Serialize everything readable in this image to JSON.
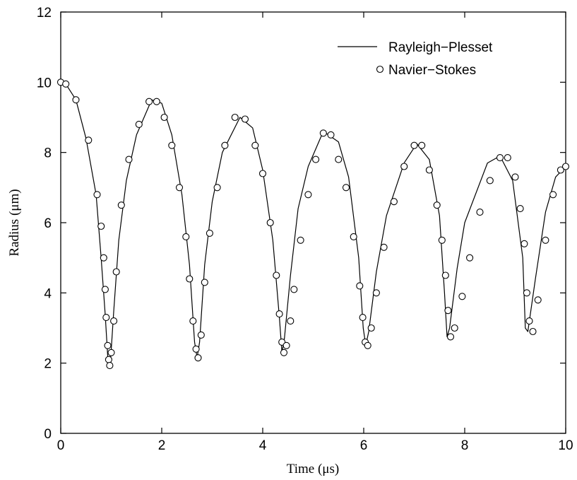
{
  "chart_data": {
    "type": "line",
    "title": "",
    "xlabel": "Time (μs)",
    "ylabel": "Radius (μm)",
    "xlim": [
      0,
      10
    ],
    "ylim": [
      0,
      12
    ],
    "xticks": [
      "0",
      "2",
      "4",
      "6",
      "8",
      "10"
    ],
    "yticks": [
      "0",
      "2",
      "4",
      "6",
      "8",
      "10",
      "12"
    ],
    "grid": false,
    "legend_position": "top-right",
    "series": [
      {
        "name": "Rayleigh−Plesset",
        "style": "line",
        "x": [
          0.0,
          0.1,
          0.3,
          0.5,
          0.7,
          0.8,
          0.88,
          0.93,
          0.98,
          1.05,
          1.15,
          1.3,
          1.5,
          1.8,
          2.0,
          2.2,
          2.4,
          2.55,
          2.65,
          2.7,
          2.75,
          2.85,
          3.0,
          3.2,
          3.55,
          3.8,
          4.0,
          4.2,
          4.33,
          4.38,
          4.43,
          4.55,
          4.7,
          4.9,
          5.2,
          5.5,
          5.7,
          5.9,
          5.99,
          6.04,
          6.1,
          6.25,
          6.45,
          6.8,
          7.05,
          7.3,
          7.5,
          7.6,
          7.65,
          7.7,
          7.85,
          8.0,
          8.45,
          8.7,
          8.95,
          9.15,
          9.2,
          9.25,
          9.4,
          9.6,
          9.8,
          10.0
        ],
        "y": [
          10.0,
          9.95,
          9.5,
          8.4,
          6.8,
          5.0,
          3.4,
          2.2,
          1.95,
          3.5,
          5.5,
          7.2,
          8.5,
          9.5,
          9.4,
          8.5,
          6.8,
          4.8,
          2.6,
          2.15,
          2.6,
          4.8,
          6.6,
          8.0,
          9.0,
          8.7,
          7.5,
          5.5,
          3.3,
          2.3,
          2.7,
          4.5,
          6.4,
          7.6,
          8.6,
          8.3,
          7.3,
          5.0,
          3.0,
          2.5,
          2.9,
          4.6,
          6.2,
          7.7,
          8.25,
          7.8,
          6.2,
          4.0,
          2.75,
          3.0,
          4.7,
          6.0,
          7.7,
          7.9,
          7.2,
          5.0,
          3.0,
          2.9,
          4.4,
          6.3,
          7.3,
          7.6
        ]
      },
      {
        "name": "Navier−Stokes",
        "style": "markers",
        "x": [
          0.0,
          0.1,
          0.3,
          0.55,
          0.72,
          0.8,
          0.85,
          0.88,
          0.9,
          0.93,
          0.95,
          0.97,
          1.0,
          1.05,
          1.1,
          1.2,
          1.35,
          1.55,
          1.75,
          1.9,
          2.05,
          2.2,
          2.35,
          2.48,
          2.55,
          2.62,
          2.68,
          2.72,
          2.78,
          2.85,
          2.95,
          3.1,
          3.25,
          3.45,
          3.65,
          3.85,
          4.0,
          4.15,
          4.27,
          4.33,
          4.38,
          4.42,
          4.47,
          4.55,
          4.62,
          4.75,
          4.9,
          5.05,
          5.2,
          5.35,
          5.5,
          5.65,
          5.8,
          5.92,
          5.98,
          6.03,
          6.08,
          6.15,
          6.25,
          6.4,
          6.6,
          6.8,
          7.0,
          7.15,
          7.3,
          7.45,
          7.55,
          7.62,
          7.67,
          7.72,
          7.8,
          7.95,
          8.1,
          8.3,
          8.5,
          8.7,
          8.85,
          9.0,
          9.1,
          9.18,
          9.23,
          9.28,
          9.35,
          9.45,
          9.6,
          9.75,
          9.9,
          10.0
        ],
        "y": [
          10.0,
          9.95,
          9.5,
          8.35,
          6.8,
          5.9,
          5.0,
          4.1,
          3.3,
          2.5,
          2.1,
          1.93,
          2.3,
          3.2,
          4.6,
          6.5,
          7.8,
          8.8,
          9.45,
          9.45,
          9.0,
          8.2,
          7.0,
          5.6,
          4.4,
          3.2,
          2.4,
          2.15,
          2.8,
          4.3,
          5.7,
          7.0,
          8.2,
          9.0,
          8.95,
          8.2,
          7.4,
          6.0,
          4.5,
          3.4,
          2.6,
          2.3,
          2.5,
          3.2,
          4.1,
          5.5,
          6.8,
          7.8,
          8.55,
          8.5,
          7.8,
          7.0,
          5.6,
          4.2,
          3.3,
          2.6,
          2.5,
          3.0,
          4.0,
          5.3,
          6.6,
          7.6,
          8.2,
          8.2,
          7.5,
          6.5,
          5.5,
          4.5,
          3.5,
          2.75,
          3.0,
          3.9,
          5.0,
          6.3,
          7.2,
          7.85,
          7.85,
          7.3,
          6.4,
          5.4,
          4.0,
          3.2,
          2.9,
          3.8,
          5.5,
          6.8,
          7.5,
          7.6
        ]
      }
    ]
  }
}
